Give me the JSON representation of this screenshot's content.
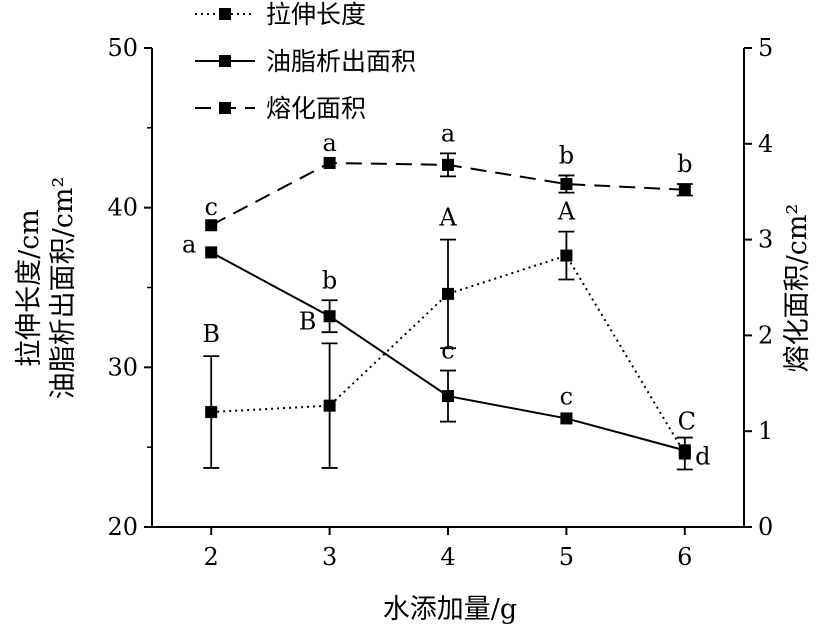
{
  "chart_data": {
    "type": "line",
    "title": "",
    "xlabel": "水添加量/g",
    "ylabel_left": [
      "拉伸长度/cm",
      "油脂析出面积/cm²"
    ],
    "ylabel_right": "熔化面积/cm²",
    "x": [
      2,
      3,
      4,
      5,
      6
    ],
    "xlim": [
      1.5,
      6.5
    ],
    "ylim_left": [
      20,
      50
    ],
    "ylim_right": [
      0,
      5
    ],
    "x_ticks": [
      "2",
      "3",
      "4",
      "5",
      "6"
    ],
    "y_ticks_left": [
      "20",
      "30",
      "40",
      "50"
    ],
    "y_ticks_right": [
      "0",
      "1",
      "2",
      "3",
      "4",
      "5"
    ],
    "legend_position": "top",
    "series": [
      {
        "name": "拉伸长度",
        "axis": "left",
        "line_style": "dotted",
        "values": [
          27.2,
          27.6,
          34.6,
          37.0,
          24.6
        ],
        "errors": [
          3.5,
          3.9,
          3.4,
          1.5,
          1.0
        ],
        "labels": [
          "B",
          "B",
          "A",
          "A",
          "C"
        ]
      },
      {
        "name": "油脂析出面积",
        "axis": "left",
        "line_style": "solid",
        "values": [
          37.2,
          33.2,
          28.2,
          26.8,
          24.8
        ],
        "errors": [
          0,
          1.0,
          1.6,
          0,
          0
        ],
        "labels": [
          "a",
          "b",
          "c",
          "c",
          "d"
        ]
      },
      {
        "name": "熔化面积",
        "axis": "right",
        "line_style": "dashed",
        "values": [
          3.15,
          3.8,
          3.78,
          3.58,
          3.52
        ],
        "errors": [
          0,
          0,
          0.12,
          0.09,
          0.06
        ],
        "labels": [
          "c",
          "a",
          "a",
          "b",
          "b"
        ]
      }
    ]
  }
}
